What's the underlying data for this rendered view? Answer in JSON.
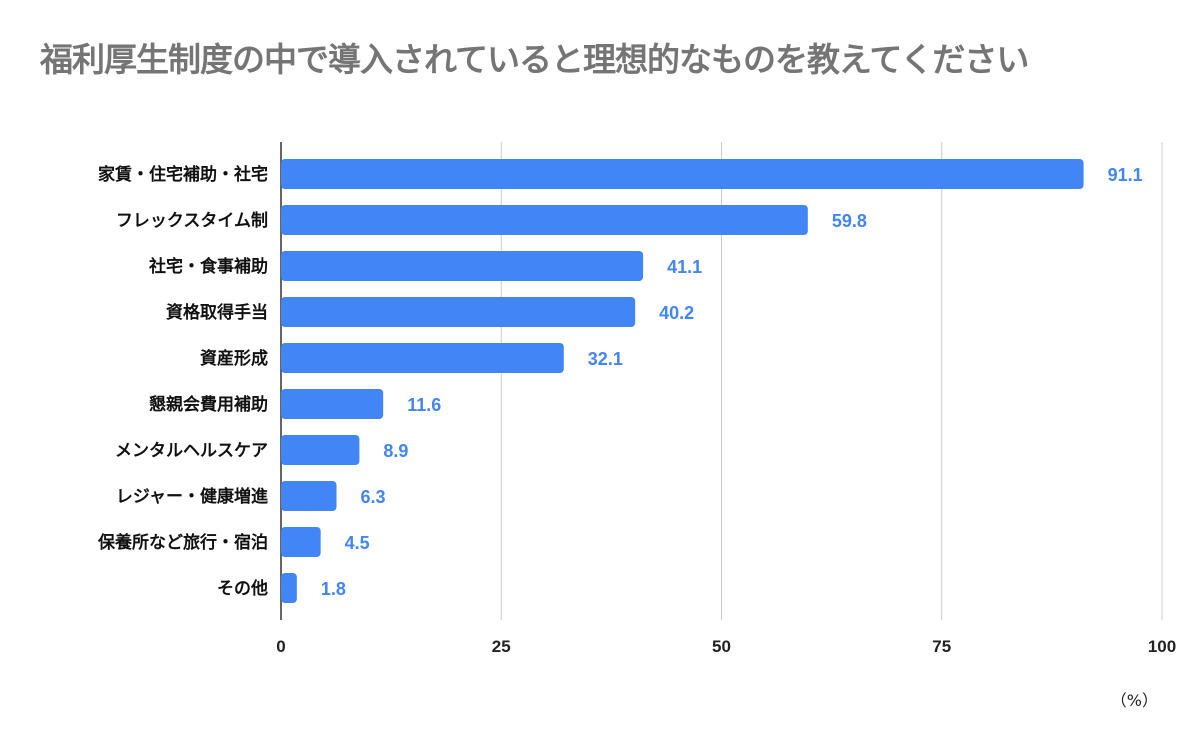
{
  "chart_data": {
    "type": "bar",
    "orientation": "horizontal",
    "title": "福利厚生制度の中で導入されていると理想的なものを教えてください",
    "xlabel": "",
    "ylabel": "",
    "unit_label": "（%）",
    "categories": [
      "家賃・住宅補助・社宅",
      "フレックスタイム制",
      "社宅・食事補助",
      "資格取得手当",
      "資産形成",
      "懇親会費用補助",
      "メンタルヘルスケア",
      "レジャー・健康増進",
      "保養所など旅行・宿泊",
      "その他"
    ],
    "values": [
      91.1,
      59.8,
      41.1,
      40.2,
      32.1,
      11.6,
      8.9,
      6.3,
      4.5,
      1.8
    ],
    "data_labels": [
      "91.1",
      "59.8",
      "41.1",
      "40.2",
      "32.1",
      "11.6",
      "8.9",
      "6.3",
      "4.5",
      "1.8"
    ],
    "xlim": [
      0,
      100
    ],
    "xticks": [
      "0",
      "25",
      "50",
      "75",
      "100"
    ],
    "grid": true,
    "legend": "none",
    "colors": {
      "bar": "#4285f4",
      "label": "#4285f4",
      "title": "#757575",
      "grid": "#cccccc"
    }
  }
}
